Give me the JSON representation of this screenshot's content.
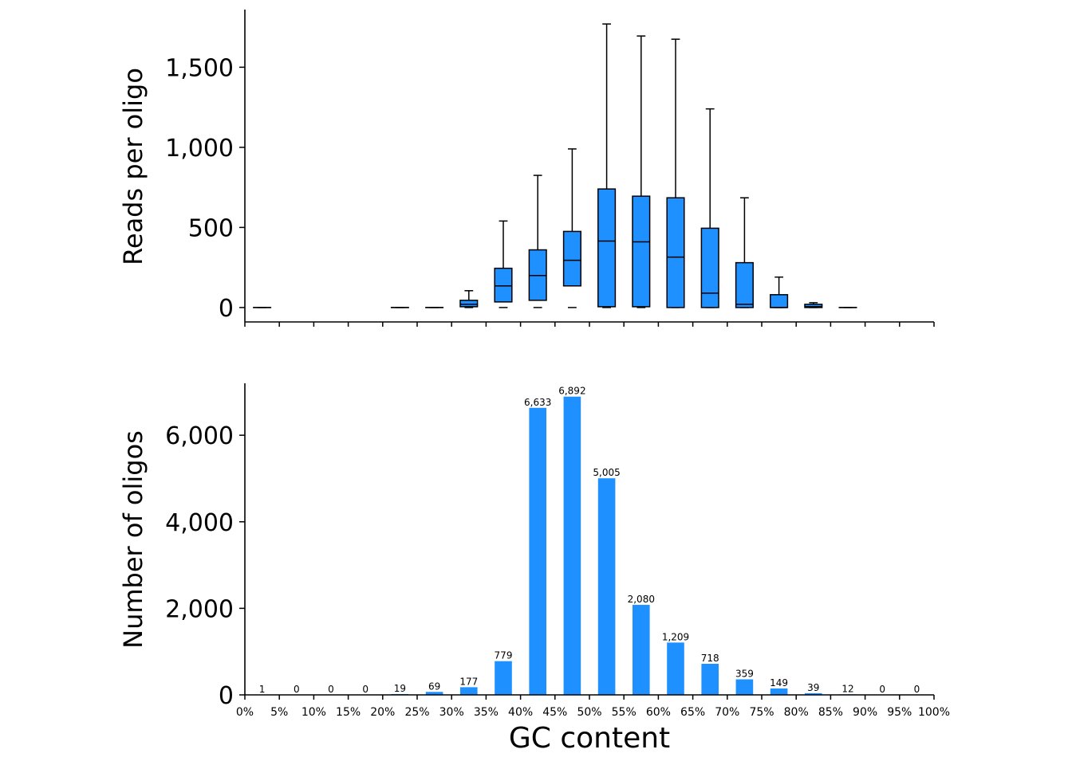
{
  "colors": {
    "bar": "#1e90ff",
    "line": "#000000"
  },
  "chart_data": [
    {
      "type": "box",
      "ylabel": "Reads per oligo",
      "ylim": [
        -90,
        1860
      ],
      "yticks": [
        0,
        500,
        1000,
        1500
      ],
      "ytick_labels": [
        "0",
        "500",
        "1,000",
        "1,500"
      ],
      "grid": false,
      "bins": [
        {
          "x": 2.5,
          "min": 0,
          "q1": 0,
          "median": 0,
          "q3": 0,
          "max": 0
        },
        {
          "x": 22.5,
          "min": 0,
          "q1": 0,
          "median": 0,
          "q3": 0,
          "max": 0
        },
        {
          "x": 27.5,
          "min": 0,
          "q1": 0,
          "median": 0,
          "q3": 0,
          "max": 0
        },
        {
          "x": 32.5,
          "min": 0,
          "q1": 5,
          "median": 20,
          "q3": 45,
          "max": 105
        },
        {
          "x": 37.5,
          "min": 0,
          "q1": 35,
          "median": 135,
          "q3": 245,
          "max": 540
        },
        {
          "x": 42.5,
          "min": 0,
          "q1": 45,
          "median": 200,
          "q3": 360,
          "max": 825
        },
        {
          "x": 47.5,
          "min": 0,
          "q1": 135,
          "median": 295,
          "q3": 475,
          "max": 990
        },
        {
          "x": 52.5,
          "min": 0,
          "q1": 5,
          "median": 415,
          "q3": 740,
          "max": 1770
        },
        {
          "x": 57.5,
          "min": 0,
          "q1": 5,
          "median": 410,
          "q3": 695,
          "max": 1695
        },
        {
          "x": 62.5,
          "min": 0,
          "q1": 0,
          "median": 315,
          "q3": 685,
          "max": 1675
        },
        {
          "x": 67.5,
          "min": 0,
          "q1": 0,
          "median": 90,
          "q3": 495,
          "max": 1240
        },
        {
          "x": 72.5,
          "min": 0,
          "q1": 0,
          "median": 20,
          "q3": 280,
          "max": 685
        },
        {
          "x": 77.5,
          "min": 0,
          "q1": 0,
          "median": 0,
          "q3": 80,
          "max": 190
        },
        {
          "x": 82.5,
          "min": 0,
          "q1": 0,
          "median": 5,
          "q3": 20,
          "max": 30
        },
        {
          "x": 87.5,
          "min": 0,
          "q1": 0,
          "median": 0,
          "q3": 0,
          "max": 0
        }
      ]
    },
    {
      "type": "bar",
      "ylabel": "Number of oligos",
      "xlabel": "GC content",
      "ylim": [
        0,
        7200
      ],
      "yticks": [
        0,
        2000,
        4000,
        6000
      ],
      "ytick_labels": [
        "0",
        "2,000",
        "4,000",
        "6,000"
      ],
      "xlim": [
        0,
        100
      ],
      "xticks": [
        0,
        5,
        10,
        15,
        20,
        25,
        30,
        35,
        40,
        45,
        50,
        55,
        60,
        65,
        70,
        75,
        80,
        85,
        90,
        95,
        100
      ],
      "xtick_labels": [
        "0%",
        "5%",
        "10%",
        "15%",
        "20%",
        "25%",
        "30%",
        "35%",
        "40%",
        "45%",
        "50%",
        "55%",
        "60%",
        "65%",
        "70%",
        "75%",
        "80%",
        "85%",
        "90%",
        "95%",
        "100%"
      ],
      "grid": false,
      "x": [
        2.5,
        7.5,
        12.5,
        17.5,
        22.5,
        27.5,
        32.5,
        37.5,
        42.5,
        47.5,
        52.5,
        57.5,
        62.5,
        67.5,
        72.5,
        77.5,
        82.5,
        87.5,
        92.5,
        97.5
      ],
      "values": [
        1,
        0,
        0,
        0,
        19,
        69,
        177,
        779,
        6633,
        6892,
        5005,
        2080,
        1209,
        718,
        359,
        149,
        39,
        12,
        0,
        0
      ],
      "value_labels": [
        "1",
        "0",
        "0",
        "0",
        "19",
        "69",
        "177",
        "779",
        "6,633",
        "6,892",
        "5,005",
        "2,080",
        "1,209",
        "718",
        "359",
        "149",
        "39",
        "12",
        "0",
        "0"
      ]
    }
  ]
}
